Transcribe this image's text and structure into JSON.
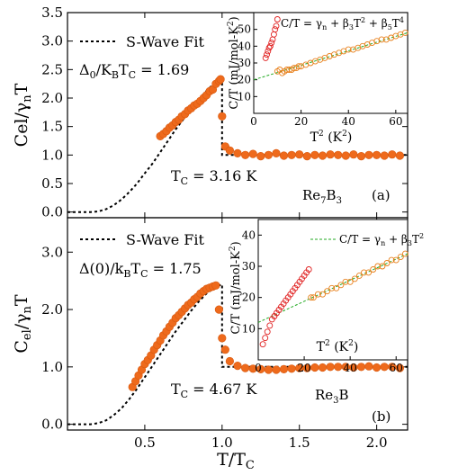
{
  "figure": {
    "shared_xlabel": "T/T",
    "shared_xlabel_sub": "C"
  },
  "chart_data": [
    {
      "type": "scatter",
      "panel": "(a)",
      "sample_label": "Re7B3",
      "sample_parts": [
        "Re",
        "7",
        "B",
        "3"
      ],
      "ylabel_parts": [
        "Cel/",
        "γ",
        "n",
        "T"
      ],
      "xlim": [
        0.0,
        2.2
      ],
      "ylim": [
        -0.1,
        3.5
      ],
      "xticks": [
        0.5,
        1.0,
        1.5,
        2.0
      ],
      "ytick_values": [
        0.0,
        0.5,
        1.0,
        1.5,
        2.0,
        2.5,
        3.0,
        3.5
      ],
      "ytick_labels": [
        "0.0",
        "0.5",
        "1.0",
        "1.5",
        "2.0",
        "2.5",
        "3.0",
        "3.5"
      ],
      "legend": "S-Wave Fit",
      "gap_label_parts": [
        "Δ",
        "0",
        "/K",
        "B",
        "T",
        "C",
        " = 1.69"
      ],
      "tc_label_parts": [
        "T",
        "C",
        " = 3.16 K"
      ],
      "fit_x": [
        0.0,
        0.15,
        0.2,
        0.25,
        0.3,
        0.35,
        0.4,
        0.45,
        0.5,
        0.55,
        0.6,
        0.65,
        0.7,
        0.75,
        0.8,
        0.85,
        0.9,
        0.95,
        1.0,
        1.0,
        2.2
      ],
      "fit_y": [
        0.0,
        0.0,
        0.01,
        0.05,
        0.12,
        0.22,
        0.35,
        0.5,
        0.68,
        0.85,
        1.05,
        1.25,
        1.45,
        1.63,
        1.82,
        1.98,
        2.13,
        2.26,
        2.36,
        1.0,
        1.0
      ],
      "data_x": [
        0.6,
        0.62,
        0.64,
        0.66,
        0.68,
        0.7,
        0.72,
        0.74,
        0.76,
        0.78,
        0.8,
        0.82,
        0.84,
        0.86,
        0.88,
        0.9,
        0.92,
        0.94,
        0.96,
        0.98,
        0.99,
        1.0,
        1.02,
        1.05,
        1.1,
        1.15,
        1.2,
        1.25,
        1.3,
        1.35,
        1.4,
        1.45,
        1.5,
        1.55,
        1.6,
        1.65,
        1.7,
        1.75,
        1.8,
        1.85,
        1.9,
        1.95,
        2.0,
        2.05,
        2.1,
        2.15
      ],
      "data_y": [
        1.33,
        1.37,
        1.42,
        1.48,
        1.52,
        1.58,
        1.62,
        1.68,
        1.72,
        1.78,
        1.82,
        1.87,
        1.9,
        1.95,
        2.0,
        2.05,
        2.12,
        2.15,
        2.25,
        2.3,
        2.33,
        1.68,
        1.15,
        1.08,
        1.03,
        1.0,
        1.02,
        0.98,
        1.0,
        1.03,
        0.99,
        1.0,
        1.01,
        0.98,
        1.0,
        0.99,
        1.01,
        1.0,
        0.99,
        1.01,
        0.98,
        1.0,
        1.0,
        0.99,
        1.01,
        0.99
      ],
      "inset": {
        "title_parts": [
          "C/T = γ",
          "n",
          " + β",
          "3",
          "T",
          "2",
          " + β",
          "5",
          "T",
          "4"
        ],
        "ylabel_parts": [
          "C/T (mJ/mol-K",
          "2",
          ")"
        ],
        "xlabel_parts": [
          "T",
          "2",
          " (K",
          "2",
          ")"
        ],
        "xlim": [
          0,
          65
        ],
        "ylim": [
          0,
          60
        ],
        "xticks": [
          0,
          20,
          40,
          60
        ],
        "yticks": [
          10,
          20,
          30,
          40,
          50
        ],
        "fit_x": [
          0,
          65
        ],
        "fit_y": [
          20.0,
          48.0
        ],
        "sc_x": [
          5,
          5.5,
          6,
          6.5,
          7,
          7.5,
          8,
          8.5,
          9,
          9.5,
          10
        ],
        "sc_y": [
          33,
          35,
          37,
          39,
          40,
          42,
          44,
          47,
          50,
          52,
          56
        ],
        "n_x": [
          10,
          11,
          12,
          13,
          14,
          15,
          16,
          17,
          18,
          19,
          20,
          22,
          24,
          26,
          28,
          30,
          32,
          34,
          36,
          38,
          40,
          42,
          44,
          46,
          48,
          50,
          52,
          54,
          56,
          58,
          60,
          62,
          64
        ],
        "n_y": [
          25,
          26,
          24,
          25,
          26,
          26,
          26,
          27,
          27,
          28,
          28,
          29,
          30,
          31,
          32,
          33,
          34,
          35,
          36,
          37,
          38,
          38,
          39,
          40,
          41,
          42,
          43,
          44,
          44,
          45,
          46,
          47,
          48
        ]
      }
    },
    {
      "type": "scatter",
      "panel": "(b)",
      "sample_label": "Re3B",
      "sample_parts": [
        "Re",
        "3",
        "B",
        ""
      ],
      "ylabel_parts": [
        "C",
        "el",
        "/γ",
        "n",
        "T"
      ],
      "xlim": [
        0.0,
        2.2
      ],
      "ylim": [
        -0.1,
        3.6
      ],
      "xticks": [
        0.5,
        1.0,
        1.5,
        2.0
      ],
      "ytick_values": [
        0.0,
        1.0,
        2.0,
        3.0
      ],
      "ytick_labels": [
        "0.0",
        "1.0",
        "2.0",
        "3.0"
      ],
      "legend": "S-Wave Fit",
      "gap_label_parts": [
        "Δ(0)/k",
        "B",
        "T",
        "C",
        " = 1.75"
      ],
      "tc_label_parts": [
        "T",
        "C",
        " = 4.67 K"
      ],
      "fit_x": [
        0.0,
        0.15,
        0.2,
        0.25,
        0.3,
        0.35,
        0.4,
        0.45,
        0.5,
        0.55,
        0.6,
        0.65,
        0.7,
        0.75,
        0.8,
        0.85,
        0.9,
        0.95,
        1.0,
        1.0,
        2.2
      ],
      "fit_y": [
        0.0,
        0.0,
        0.02,
        0.07,
        0.16,
        0.28,
        0.44,
        0.62,
        0.82,
        1.02,
        1.22,
        1.42,
        1.62,
        1.8,
        1.98,
        2.14,
        2.28,
        2.38,
        2.44,
        1.0,
        1.0
      ],
      "data_x": [
        0.42,
        0.44,
        0.46,
        0.48,
        0.5,
        0.52,
        0.54,
        0.56,
        0.58,
        0.6,
        0.62,
        0.64,
        0.66,
        0.68,
        0.7,
        0.72,
        0.74,
        0.76,
        0.78,
        0.8,
        0.82,
        0.84,
        0.86,
        0.88,
        0.9,
        0.92,
        0.94,
        0.96,
        0.98,
        1.0,
        1.02,
        1.05,
        1.1,
        1.15,
        1.2,
        1.25,
        1.3,
        1.35,
        1.4,
        1.45,
        1.5,
        1.55,
        1.6,
        1.65,
        1.7,
        1.75,
        1.8,
        1.85,
        1.9,
        1.95,
        2.0,
        2.05,
        2.1,
        2.15
      ],
      "data_y": [
        0.65,
        0.75,
        0.85,
        0.95,
        1.05,
        1.12,
        1.2,
        1.3,
        1.38,
        1.46,
        1.55,
        1.62,
        1.7,
        1.77,
        1.85,
        1.9,
        1.96,
        2.02,
        2.08,
        2.12,
        2.18,
        2.22,
        2.28,
        2.32,
        2.36,
        2.38,
        2.4,
        2.42,
        2.0,
        1.5,
        1.3,
        1.1,
        1.02,
        0.98,
        0.97,
        0.96,
        0.95,
        0.95,
        0.96,
        0.97,
        0.98,
        0.98,
        0.99,
        0.99,
        1.0,
        1.0,
        1.0,
        0.99,
        1.0,
        1.01,
        0.99,
        1.0,
        1.0,
        0.98
      ],
      "inset": {
        "title_parts": [
          "C/T = γ",
          "n",
          " + β",
          "3",
          "T",
          "2",
          "",
          "",
          "",
          ""
        ],
        "ylabel_parts": [
          "C/T (mJ/mol-K",
          "2",
          ")"
        ],
        "xlabel_parts": [
          "T",
          "2",
          " (K",
          "2",
          ")"
        ],
        "xlim": [
          0,
          65
        ],
        "ylim": [
          0,
          45
        ],
        "xticks": [
          0,
          20,
          40,
          60
        ],
        "yticks": [
          10,
          20,
          30,
          40
        ],
        "fit_x": [
          0,
          65
        ],
        "fit_y": [
          12.0,
          34.0
        ],
        "sc_x": [
          2,
          3,
          4,
          5,
          6,
          7,
          8,
          9,
          10,
          11,
          12,
          13,
          14,
          15,
          16,
          17,
          18,
          19,
          20,
          21,
          22
        ],
        "sc_y": [
          5,
          7,
          9,
          11,
          13,
          14,
          15,
          16,
          17,
          18,
          19,
          20,
          21,
          22,
          23,
          24,
          25,
          26,
          27,
          28,
          29
        ],
        "n_x": [
          23,
          24,
          26,
          28,
          30,
          32,
          34,
          36,
          38,
          40,
          42,
          44,
          46,
          48,
          50,
          52,
          54,
          56,
          58,
          60,
          62,
          64
        ],
        "n_y": [
          20,
          20,
          21,
          21,
          22,
          23,
          23,
          24,
          25,
          25,
          26,
          27,
          28,
          28,
          29,
          30,
          30,
          31,
          32,
          32,
          33,
          34
        ]
      }
    }
  ]
}
